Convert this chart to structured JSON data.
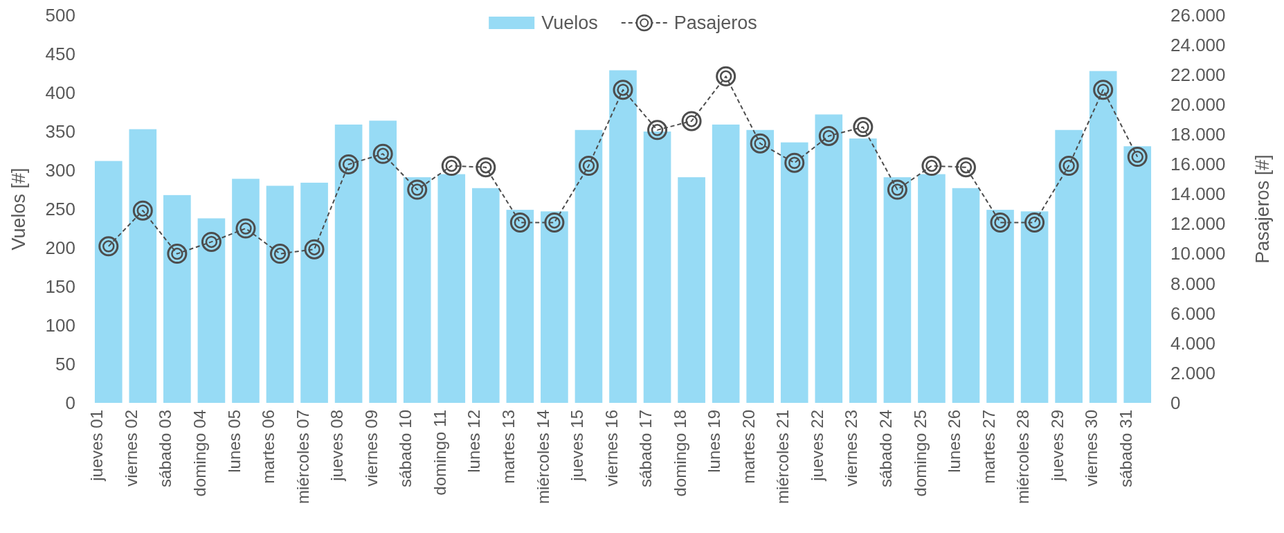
{
  "chart_data": {
    "type": "bar",
    "ylabel": "Vuelos [#]",
    "y2label": "Pasajeros [#]",
    "categories": [
      "jueves 01",
      "viernes 02",
      "sábado 03",
      "domingo 04",
      "lunes 05",
      "martes 06",
      "miércoles 07",
      "jueves 08",
      "viernes 09",
      "sábado 10",
      "domingo 11",
      "lunes 12",
      "martes 13",
      "miércoles 14",
      "jueves 15",
      "viernes 16",
      "sábado 17",
      "domingo 18",
      "lunes 19",
      "martes 20",
      "miércoles 21",
      "jueves 22",
      "viernes 23",
      "sábado 24",
      "domingo 25",
      "lunes 26",
      "martes 27",
      "miércoles 28",
      "jueves 29",
      "viernes 30",
      "sábado 31"
    ],
    "series": [
      {
        "name": "Vuelos",
        "color": "#97dbf5",
        "values": [
          312,
          353,
          268,
          238,
          289,
          280,
          284,
          359,
          364,
          291,
          295,
          277,
          249,
          247,
          352,
          429,
          350,
          291,
          359,
          352,
          336,
          372,
          341,
          291,
          295,
          277,
          249,
          247,
          352,
          428,
          331
        ]
      },
      {
        "name": "Pasajeros",
        "type": "line",
        "axis": "y2",
        "color": "#4d4d4d",
        "marker": "circle",
        "line_style": "dashed",
        "values": [
          10500,
          12900,
          10000,
          10800,
          11700,
          10000,
          10300,
          16000,
          16700,
          14300,
          15900,
          15800,
          12100,
          12100,
          15900,
          21000,
          18300,
          18900,
          21900,
          17400,
          16100,
          17900,
          18500,
          14300,
          15900,
          15800,
          12100,
          12100,
          15900,
          21000,
          16500
        ]
      }
    ],
    "ylim": [
      0,
      500
    ],
    "yticks": [
      0,
      50,
      100,
      150,
      200,
      250,
      300,
      350,
      400,
      450,
      500
    ],
    "y2lim": [
      0,
      26000
    ],
    "y2ticks": [
      {
        "value": 0,
        "label": "0"
      },
      {
        "value": 2000,
        "label": "2.000"
      },
      {
        "value": 4000,
        "label": "4.000"
      },
      {
        "value": 6000,
        "label": "6.000"
      },
      {
        "value": 8000,
        "label": "8.000"
      },
      {
        "value": 10000,
        "label": "10.000"
      },
      {
        "value": 12000,
        "label": "12.000"
      },
      {
        "value": 14000,
        "label": "14.000"
      },
      {
        "value": 16000,
        "label": "16.000"
      },
      {
        "value": 18000,
        "label": "18.000"
      },
      {
        "value": 20000,
        "label": "20.000"
      },
      {
        "value": 22000,
        "label": "22.000"
      },
      {
        "value": 24000,
        "label": "24.000"
      },
      {
        "value": 26000,
        "label": "26.000"
      }
    ],
    "legend": "top",
    "grid": false
  }
}
